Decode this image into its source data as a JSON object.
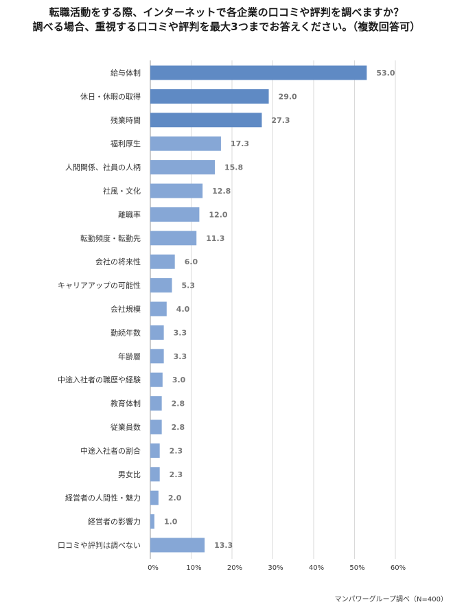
{
  "chart_data": {
    "type": "bar",
    "orientation": "horizontal",
    "title": "転職活動をする際、インターネットで各企業の口コミや評判を調べますか？",
    "subtitle": "調べる場合、重視する口コミや評判を最大3つまでお答えください。（複数回答可）",
    "xlabel": "",
    "ylabel": "",
    "xlim": [
      0,
      60
    ],
    "x_ticks": [
      "0%",
      "10%",
      "20%",
      "30%",
      "40%",
      "50%",
      "60%"
    ],
    "grid": "vertical",
    "legend": "none",
    "categories": [
      "給与体制",
      "休日・休暇の取得",
      "残業時間",
      "福利厚生",
      "人間関係、社員の人柄",
      "社風・文化",
      "離職率",
      "転勤頻度・転勤先",
      "会社の将来性",
      "キャリアアップの可能性",
      "会社規模",
      "勤続年数",
      "年齢層",
      "中途入社者の職歴や経験",
      "教育体制",
      "従業員数",
      "中途入社者の割合",
      "男女比",
      "経営者の人間性・魅力",
      "経営者の影響力",
      "口コミや評判は調べない"
    ],
    "values": [
      53.0,
      29.0,
      27.3,
      17.3,
      15.8,
      12.8,
      12.0,
      11.3,
      6.0,
      5.3,
      4.0,
      3.3,
      3.3,
      3.0,
      2.8,
      2.8,
      2.3,
      2.3,
      2.0,
      1.0,
      13.3
    ],
    "value_labels": [
      "53.0",
      "29.0",
      "27.3",
      "17.3",
      "15.8",
      "12.8",
      "12.0",
      "11.3",
      "6.0",
      "5.3",
      "4.0",
      "3.3",
      "3.3",
      "3.0",
      "2.8",
      "2.8",
      "2.3",
      "2.3",
      "2.0",
      "1.0",
      "13.3"
    ],
    "highlight_count": 3,
    "colors": {
      "highlight": "#5f8ac4",
      "normal": "#86a7d6",
      "grid": "#d9d9d9",
      "axis": "#999999",
      "value_text": "#777777"
    }
  },
  "source": "マンパワーグループ調べ（N=400）"
}
